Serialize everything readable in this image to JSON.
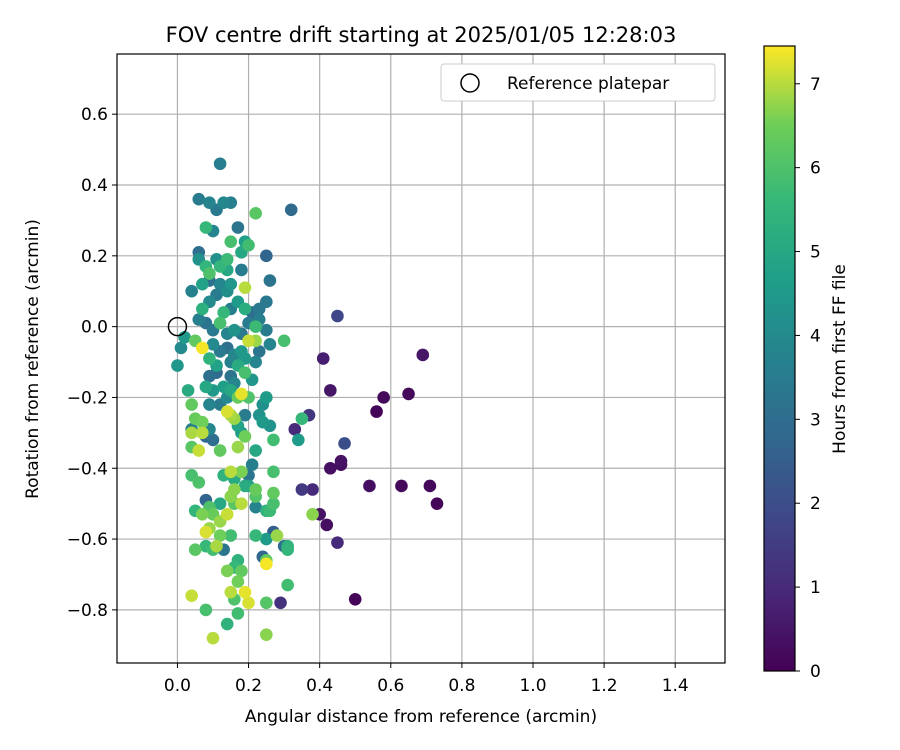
{
  "chart_data": {
    "type": "scatter",
    "title": "FOV centre drift starting at 2025/01/05 12:28:03",
    "xlabel": "Angular distance from reference (arcmin)",
    "ylabel": "Rotation from reference (arcmin)",
    "xlim": [
      -0.17,
      1.54
    ],
    "ylim": [
      -0.95,
      0.77
    ],
    "xticks": [
      0.0,
      0.2,
      0.4,
      0.6,
      0.8,
      1.0,
      1.2,
      1.4
    ],
    "xtick_labels": [
      "0.0",
      "0.2",
      "0.4",
      "0.6",
      "0.8",
      "1.0",
      "1.2",
      "1.4"
    ],
    "yticks": [
      0.6,
      0.4,
      0.2,
      0.0,
      -0.2,
      -0.4,
      -0.6,
      -0.8
    ],
    "ytick_labels": [
      "0.6",
      "0.4",
      "0.2",
      "0.0",
      "−0.2",
      "−0.4",
      "−0.6",
      "−0.8"
    ],
    "grid": true,
    "legend": {
      "position": "top-right",
      "entries": [
        "Reference platepar"
      ]
    },
    "reference_point": {
      "x": 0.0,
      "y": 0.0,
      "label": "Reference platepar"
    },
    "colorbar": {
      "label": "Hours from first FF file",
      "range": [
        0,
        7.45
      ],
      "ticks": [
        0,
        1,
        2,
        3,
        4,
        5,
        6,
        7
      ],
      "tick_labels": [
        "0",
        "1",
        "2",
        "3",
        "4",
        "5",
        "6",
        "7"
      ],
      "colormap": "viridis"
    },
    "points": [
      {
        "x": 0.5,
        "y": -0.77,
        "h": 0.1
      },
      {
        "x": 0.73,
        "y": -0.5,
        "h": 0.1
      },
      {
        "x": 0.71,
        "y": -0.45,
        "h": 0.2
      },
      {
        "x": 0.63,
        "y": -0.45,
        "h": 0.2
      },
      {
        "x": 0.54,
        "y": -0.45,
        "h": 0.3
      },
      {
        "x": 0.69,
        "y": -0.08,
        "h": 0.5
      },
      {
        "x": 0.65,
        "y": -0.19,
        "h": 0.2
      },
      {
        "x": 0.58,
        "y": -0.2,
        "h": 0.2
      },
      {
        "x": 0.56,
        "y": -0.24,
        "h": 0.1
      },
      {
        "x": 0.42,
        "y": -0.56,
        "h": 0.3
      },
      {
        "x": 0.4,
        "y": -0.53,
        "h": 0.4
      },
      {
        "x": 0.45,
        "y": -0.61,
        "h": 1.0
      },
      {
        "x": 0.46,
        "y": -0.38,
        "h": 0.4
      },
      {
        "x": 0.46,
        "y": -0.39,
        "h": 0.3
      },
      {
        "x": 0.43,
        "y": -0.4,
        "h": 0.3
      },
      {
        "x": 0.43,
        "y": -0.18,
        "h": 0.5
      },
      {
        "x": 0.41,
        "y": -0.09,
        "h": 0.7
      },
      {
        "x": 0.45,
        "y": 0.03,
        "h": 1.8
      },
      {
        "x": 0.47,
        "y": -0.33,
        "h": 2.0
      },
      {
        "x": 0.38,
        "y": -0.46,
        "h": 1.0
      },
      {
        "x": 0.35,
        "y": -0.46,
        "h": 1.4
      },
      {
        "x": 0.37,
        "y": -0.25,
        "h": 1.3
      },
      {
        "x": 0.33,
        "y": -0.29,
        "h": 1.0
      },
      {
        "x": 0.29,
        "y": -0.78,
        "h": 1.2
      },
      {
        "x": 0.32,
        "y": 0.33,
        "h": 2.9
      },
      {
        "x": 0.12,
        "y": 0.46,
        "h": 3.6
      },
      {
        "x": 0.25,
        "y": 0.2,
        "h": 2.7
      },
      {
        "x": 0.26,
        "y": 0.13,
        "h": 3.2
      },
      {
        "x": 0.25,
        "y": 0.07,
        "h": 3.4
      },
      {
        "x": 0.23,
        "y": 0.02,
        "h": 3.6
      },
      {
        "x": 0.25,
        "y": -0.01,
        "h": 3.5
      },
      {
        "x": 0.26,
        "y": -0.05,
        "h": 3.8
      },
      {
        "x": 0.23,
        "y": -0.07,
        "h": 3.3
      },
      {
        "x": 0.22,
        "y": -0.1,
        "h": 3.8
      },
      {
        "x": 0.21,
        "y": -0.15,
        "h": 4.4
      },
      {
        "x": 0.25,
        "y": -0.2,
        "h": 4.6
      },
      {
        "x": 0.24,
        "y": -0.22,
        "h": 4.2
      },
      {
        "x": 0.26,
        "y": -0.28,
        "h": 4.3
      },
      {
        "x": 0.24,
        "y": -0.27,
        "h": 4.5
      },
      {
        "x": 0.22,
        "y": -0.35,
        "h": 5.0
      },
      {
        "x": 0.21,
        "y": -0.39,
        "h": 3.6
      },
      {
        "x": 0.2,
        "y": -0.42,
        "h": 3.3
      },
      {
        "x": 0.2,
        "y": -0.45,
        "h": 4.8
      },
      {
        "x": 0.22,
        "y": -0.51,
        "h": 3.8
      },
      {
        "x": 0.25,
        "y": -0.52,
        "h": 5.4
      },
      {
        "x": 0.25,
        "y": -0.6,
        "h": 4.6
      },
      {
        "x": 0.27,
        "y": -0.58,
        "h": 2.5
      },
      {
        "x": 0.3,
        "y": -0.62,
        "h": 3.0
      },
      {
        "x": 0.31,
        "y": -0.63,
        "h": 5.5
      },
      {
        "x": 0.24,
        "y": -0.65,
        "h": 2.8
      },
      {
        "x": 0.25,
        "y": -0.66,
        "h": 6.3
      },
      {
        "x": 0.31,
        "y": -0.73,
        "h": 5.8
      },
      {
        "x": 0.25,
        "y": -0.78,
        "h": 6.1
      },
      {
        "x": 0.25,
        "y": -0.87,
        "h": 6.7
      },
      {
        "x": 0.17,
        "y": -0.81,
        "h": 5.8
      },
      {
        "x": 0.14,
        "y": -0.84,
        "h": 5.4
      },
      {
        "x": 0.08,
        "y": -0.8,
        "h": 5.9
      },
      {
        "x": 0.1,
        "y": -0.88,
        "h": 7.0
      },
      {
        "x": 0.04,
        "y": -0.76,
        "h": 7.1
      },
      {
        "x": 0.06,
        "y": 0.36,
        "h": 3.5
      },
      {
        "x": 0.09,
        "y": 0.35,
        "h": 3.8
      },
      {
        "x": 0.11,
        "y": 0.33,
        "h": 3.4
      },
      {
        "x": 0.13,
        "y": 0.35,
        "h": 3.9
      },
      {
        "x": 0.15,
        "y": 0.35,
        "h": 3.6
      },
      {
        "x": 0.22,
        "y": 0.32,
        "h": 6.2
      },
      {
        "x": 0.08,
        "y": 0.28,
        "h": 5.6
      },
      {
        "x": 0.1,
        "y": 0.27,
        "h": 3.8
      },
      {
        "x": 0.15,
        "y": 0.24,
        "h": 5.9
      },
      {
        "x": 0.17,
        "y": 0.28,
        "h": 3.3
      },
      {
        "x": 0.19,
        "y": 0.24,
        "h": 4.7
      },
      {
        "x": 0.2,
        "y": 0.23,
        "h": 5.8
      },
      {
        "x": 0.18,
        "y": 0.21,
        "h": 5.0
      },
      {
        "x": 0.06,
        "y": 0.21,
        "h": 3.0
      },
      {
        "x": 0.06,
        "y": 0.19,
        "h": 4.2
      },
      {
        "x": 0.08,
        "y": 0.17,
        "h": 5.5
      },
      {
        "x": 0.09,
        "y": 0.15,
        "h": 6.0
      },
      {
        "x": 0.11,
        "y": 0.19,
        "h": 4.2
      },
      {
        "x": 0.12,
        "y": 0.17,
        "h": 5.5
      },
      {
        "x": 0.14,
        "y": 0.19,
        "h": 5.7
      },
      {
        "x": 0.14,
        "y": 0.16,
        "h": 5.0
      },
      {
        "x": 0.18,
        "y": 0.16,
        "h": 3.5
      },
      {
        "x": 0.04,
        "y": 0.1,
        "h": 3.7
      },
      {
        "x": 0.07,
        "y": 0.12,
        "h": 4.8
      },
      {
        "x": 0.09,
        "y": 0.13,
        "h": 3.1
      },
      {
        "x": 0.12,
        "y": 0.12,
        "h": 3.8
      },
      {
        "x": 0.14,
        "y": 0.1,
        "h": 4.1
      },
      {
        "x": 0.15,
        "y": 0.12,
        "h": 4.4
      },
      {
        "x": 0.19,
        "y": 0.11,
        "h": 7.0
      },
      {
        "x": 0.07,
        "y": 0.05,
        "h": 5.3
      },
      {
        "x": 0.09,
        "y": 0.07,
        "h": 4.0
      },
      {
        "x": 0.11,
        "y": 0.09,
        "h": 3.5
      },
      {
        "x": 0.13,
        "y": 0.04,
        "h": 5.6
      },
      {
        "x": 0.15,
        "y": 0.05,
        "h": 3.6
      },
      {
        "x": 0.17,
        "y": 0.07,
        "h": 4.6
      },
      {
        "x": 0.19,
        "y": 0.05,
        "h": 5.2
      },
      {
        "x": 0.21,
        "y": 0.04,
        "h": 3.0
      },
      {
        "x": 0.23,
        "y": 0.05,
        "h": 3.4
      },
      {
        "x": 0.06,
        "y": 0.02,
        "h": 3.6
      },
      {
        "x": 0.08,
        "y": 0.01,
        "h": 3.2
      },
      {
        "x": 0.1,
        "y": -0.01,
        "h": 3.4
      },
      {
        "x": 0.12,
        "y": 0.01,
        "h": 5.9
      },
      {
        "x": 0.14,
        "y": -0.02,
        "h": 3.8
      },
      {
        "x": 0.16,
        "y": -0.01,
        "h": 4.3
      },
      {
        "x": 0.18,
        "y": -0.02,
        "h": 3.4
      },
      {
        "x": 0.2,
        "y": 0.01,
        "h": 3.5
      },
      {
        "x": 0.22,
        "y": 0.0,
        "h": 5.7
      },
      {
        "x": 0.02,
        "y": -0.03,
        "h": 4.5
      },
      {
        "x": 0.01,
        "y": -0.06,
        "h": 4.0
      },
      {
        "x": 0.05,
        "y": -0.04,
        "h": 6.3
      },
      {
        "x": 0.07,
        "y": -0.06,
        "h": 7.4
      },
      {
        "x": 0.1,
        "y": -0.05,
        "h": 4.0
      },
      {
        "x": 0.12,
        "y": -0.07,
        "h": 3.4
      },
      {
        "x": 0.14,
        "y": -0.06,
        "h": 3.1
      },
      {
        "x": 0.16,
        "y": -0.08,
        "h": 3.9
      },
      {
        "x": 0.18,
        "y": -0.07,
        "h": 4.5
      },
      {
        "x": 0.2,
        "y": -0.04,
        "h": 7.1
      },
      {
        "x": 0.22,
        "y": -0.04,
        "h": 6.8
      },
      {
        "x": 0.3,
        "y": -0.04,
        "h": 5.9
      },
      {
        "x": 0.0,
        "y": -0.11,
        "h": 4.4
      },
      {
        "x": 0.09,
        "y": -0.09,
        "h": 5.4
      },
      {
        "x": 0.11,
        "y": -0.11,
        "h": 4.8
      },
      {
        "x": 0.15,
        "y": -0.1,
        "h": 3.7
      },
      {
        "x": 0.17,
        "y": -0.11,
        "h": 5.1
      },
      {
        "x": 0.19,
        "y": -0.09,
        "h": 4.5
      },
      {
        "x": 0.09,
        "y": -0.14,
        "h": 3.1
      },
      {
        "x": 0.11,
        "y": -0.13,
        "h": 2.9
      },
      {
        "x": 0.15,
        "y": -0.14,
        "h": 3.2
      },
      {
        "x": 0.19,
        "y": -0.13,
        "h": 5.9
      },
      {
        "x": 0.08,
        "y": -0.17,
        "h": 5.0
      },
      {
        "x": 0.1,
        "y": -0.18,
        "h": 4.5
      },
      {
        "x": 0.13,
        "y": -0.17,
        "h": 4.7
      },
      {
        "x": 0.15,
        "y": -0.18,
        "h": 5.0
      },
      {
        "x": 0.16,
        "y": -0.16,
        "h": 3.9
      },
      {
        "x": 0.03,
        "y": -0.18,
        "h": 5.1
      },
      {
        "x": 0.14,
        "y": -0.2,
        "h": 4.0
      },
      {
        "x": 0.18,
        "y": -0.19,
        "h": 7.3
      },
      {
        "x": 0.17,
        "y": -0.2,
        "h": 6.4
      },
      {
        "x": 0.2,
        "y": -0.2,
        "h": 6.0
      },
      {
        "x": 0.04,
        "y": -0.22,
        "h": 6.3
      },
      {
        "x": 0.09,
        "y": -0.22,
        "h": 3.8
      },
      {
        "x": 0.12,
        "y": -0.22,
        "h": 3.5
      },
      {
        "x": 0.14,
        "y": -0.24,
        "h": 7.2
      },
      {
        "x": 0.16,
        "y": -0.26,
        "h": 6.8
      },
      {
        "x": 0.19,
        "y": -0.25,
        "h": 3.5
      },
      {
        "x": 0.23,
        "y": -0.25,
        "h": 4.3
      },
      {
        "x": 0.05,
        "y": -0.26,
        "h": 6.4
      },
      {
        "x": 0.07,
        "y": -0.27,
        "h": 6.5
      },
      {
        "x": 0.04,
        "y": -0.3,
        "h": 6.9
      },
      {
        "x": 0.07,
        "y": -0.3,
        "h": 7.0
      },
      {
        "x": 0.04,
        "y": -0.29,
        "h": 3.6
      },
      {
        "x": 0.08,
        "y": -0.31,
        "h": 2.8
      },
      {
        "x": 0.09,
        "y": -0.29,
        "h": 3.9
      },
      {
        "x": 0.1,
        "y": -0.32,
        "h": 3.0
      },
      {
        "x": 0.15,
        "y": -0.25,
        "h": 6.9
      },
      {
        "x": 0.17,
        "y": -0.28,
        "h": 4.8
      },
      {
        "x": 0.18,
        "y": -0.3,
        "h": 4.6
      },
      {
        "x": 0.19,
        "y": -0.31,
        "h": 6.5
      },
      {
        "x": 0.17,
        "y": -0.34,
        "h": 6.8
      },
      {
        "x": 0.12,
        "y": -0.35,
        "h": 6.3
      },
      {
        "x": 0.04,
        "y": -0.34,
        "h": 6.2
      },
      {
        "x": 0.06,
        "y": -0.35,
        "h": 7.1
      },
      {
        "x": 0.27,
        "y": -0.32,
        "h": 5.8
      },
      {
        "x": 0.34,
        "y": -0.32,
        "h": 4.6
      },
      {
        "x": 0.35,
        "y": -0.26,
        "h": 5.6
      },
      {
        "x": 0.15,
        "y": -0.41,
        "h": 7.0
      },
      {
        "x": 0.16,
        "y": -0.43,
        "h": 5.1
      },
      {
        "x": 0.13,
        "y": -0.42,
        "h": 5.4
      },
      {
        "x": 0.18,
        "y": -0.41,
        "h": 6.6
      },
      {
        "x": 0.04,
        "y": -0.42,
        "h": 5.9
      },
      {
        "x": 0.06,
        "y": -0.44,
        "h": 6.0
      },
      {
        "x": 0.16,
        "y": -0.46,
        "h": 6.7
      },
      {
        "x": 0.19,
        "y": -0.45,
        "h": 5.1
      },
      {
        "x": 0.22,
        "y": -0.46,
        "h": 6.4
      },
      {
        "x": 0.22,
        "y": -0.48,
        "h": 6.1
      },
      {
        "x": 0.27,
        "y": -0.41,
        "h": 5.9
      },
      {
        "x": 0.27,
        "y": -0.47,
        "h": 6.3
      },
      {
        "x": 0.27,
        "y": -0.5,
        "h": 5.9
      },
      {
        "x": 0.26,
        "y": -0.52,
        "h": 5.7
      },
      {
        "x": 0.15,
        "y": -0.48,
        "h": 6.7
      },
      {
        "x": 0.16,
        "y": -0.5,
        "h": 6.2
      },
      {
        "x": 0.18,
        "y": -0.5,
        "h": 7.0
      },
      {
        "x": 0.12,
        "y": -0.5,
        "h": 5.0
      },
      {
        "x": 0.08,
        "y": -0.49,
        "h": 2.7
      },
      {
        "x": 0.05,
        "y": -0.52,
        "h": 5.5
      },
      {
        "x": 0.07,
        "y": -0.53,
        "h": 6.6
      },
      {
        "x": 0.09,
        "y": -0.51,
        "h": 6.0
      },
      {
        "x": 0.1,
        "y": -0.53,
        "h": 6.4
      },
      {
        "x": 0.12,
        "y": -0.55,
        "h": 6.8
      },
      {
        "x": 0.14,
        "y": -0.53,
        "h": 7.1
      },
      {
        "x": 0.09,
        "y": -0.57,
        "h": 6.8
      },
      {
        "x": 0.12,
        "y": -0.59,
        "h": 6.5
      },
      {
        "x": 0.15,
        "y": -0.59,
        "h": 5.8
      },
      {
        "x": 0.08,
        "y": -0.62,
        "h": 5.6
      },
      {
        "x": 0.1,
        "y": -0.63,
        "h": 5.8
      },
      {
        "x": 0.11,
        "y": -0.62,
        "h": 6.9
      },
      {
        "x": 0.13,
        "y": -0.63,
        "h": 3.3
      },
      {
        "x": 0.05,
        "y": -0.63,
        "h": 6.2
      },
      {
        "x": 0.17,
        "y": -0.66,
        "h": 5.4
      },
      {
        "x": 0.16,
        "y": -0.68,
        "h": 5.6
      },
      {
        "x": 0.14,
        "y": -0.69,
        "h": 6.6
      },
      {
        "x": 0.18,
        "y": -0.69,
        "h": 6.3
      },
      {
        "x": 0.17,
        "y": -0.72,
        "h": 6.5
      },
      {
        "x": 0.15,
        "y": -0.75,
        "h": 7.0
      },
      {
        "x": 0.16,
        "y": -0.77,
        "h": 6.0
      },
      {
        "x": 0.19,
        "y": -0.75,
        "h": 7.3
      },
      {
        "x": 0.2,
        "y": -0.78,
        "h": 7.2
      },
      {
        "x": 0.38,
        "y": -0.53,
        "h": 6.7
      },
      {
        "x": 0.28,
        "y": -0.59,
        "h": 6.8
      },
      {
        "x": 0.22,
        "y": -0.59,
        "h": 5.6
      },
      {
        "x": 0.31,
        "y": -0.62,
        "h": 5.4
      },
      {
        "x": 0.25,
        "y": -0.67,
        "h": 7.4
      },
      {
        "x": 0.08,
        "y": -0.58,
        "h": 7.2
      }
    ]
  }
}
